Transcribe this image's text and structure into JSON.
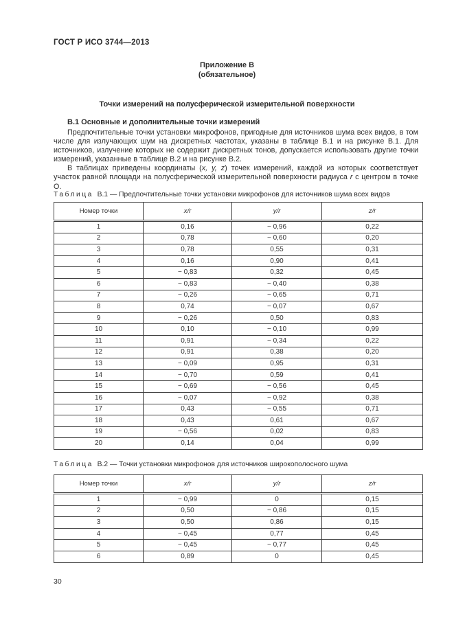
{
  "page": {
    "header": "ГОСТ Р ИСО 3744—2013",
    "page_number": "30"
  },
  "appendix": {
    "title_line1": "Приложение В",
    "title_line2": "(обязательное)",
    "heading": "Точки измерений на полусферической измерительной поверхности"
  },
  "section": {
    "title": "В.1 Основные и дополнительные точки измерений",
    "paragraph1": "Предпочтительные точки установки микрофонов, пригодные для источников шума всех видов, в том числе для излучающих шум на дискретных частотах, указаны в таблице В.1 и на рисунке В.1. Для источников, излучение которых не содержит дискретных тонов, допускается использовать другие точки измерений, указанные в таблице В.2 и на рисунке В.2.",
    "paragraph2_parts": {
      "a": "В таблицах приведены координаты (",
      "b": "x, y, z",
      "c": ") точек измерений, каждой из которых соответствует участок равной площади на полусферической измерительной поверхности радиуса ",
      "d": "r",
      "e": " с центром в точке О."
    }
  },
  "table_b1": {
    "caption_label": "Таблица",
    "caption_number": "В.1",
    "caption_text": "— Предпочтительные точки установки микрофонов для источников шума всех видов",
    "columns": [
      "Номер точки",
      "x/r",
      "y/r",
      "z/r"
    ],
    "rows": [
      [
        "1",
        "0,16",
        "− 0,96",
        "0,22"
      ],
      [
        "2",
        "0,78",
        "− 0,60",
        "0,20"
      ],
      [
        "3",
        "0,78",
        "0,55",
        "0,31"
      ],
      [
        "4",
        "0,16",
        "0,90",
        "0,41"
      ],
      [
        "5",
        "− 0,83",
        "0,32",
        "0,45"
      ],
      [
        "6",
        "− 0,83",
        "− 0,40",
        "0,38"
      ],
      [
        "7",
        "− 0,26",
        "− 0,65",
        "0,71"
      ],
      [
        "8",
        "0,74",
        "− 0,07",
        "0,67"
      ],
      [
        "9",
        "− 0,26",
        "0,50",
        "0,83"
      ],
      [
        "10",
        "0,10",
        "− 0,10",
        "0,99"
      ],
      [
        "11",
        "0,91",
        "− 0,34",
        "0,22"
      ],
      [
        "12",
        "0,91",
        "0,38",
        "0,20"
      ],
      [
        "13",
        "− 0,09",
        "0,95",
        "0,31"
      ],
      [
        "14",
        "− 0,70",
        "0,59",
        "0,41"
      ],
      [
        "15",
        "− 0,69",
        "− 0,56",
        "0,45"
      ],
      [
        "16",
        "− 0,07",
        "− 0,92",
        "0,38"
      ],
      [
        "17",
        "0,43",
        "− 0,55",
        "0,71"
      ],
      [
        "18",
        "0,43",
        "0,61",
        "0,67"
      ],
      [
        "19",
        "− 0,56",
        "0,02",
        "0,83"
      ],
      [
        "20",
        "0,14",
        "0,04",
        "0,99"
      ]
    ]
  },
  "table_b2": {
    "caption_label": "Таблица",
    "caption_number": "В.2",
    "caption_text": "— Точки установки микрофонов для источников широкополосного шума",
    "columns": [
      "Номер точки",
      "x/r",
      "y/r",
      "z/r"
    ],
    "rows": [
      [
        "1",
        "− 0,99",
        "0",
        "0,15"
      ],
      [
        "2",
        "0,50",
        "− 0,86",
        "0,15"
      ],
      [
        "3",
        "0,50",
        "0,86",
        "0,15"
      ],
      [
        "4",
        "− 0,45",
        "0,77",
        "0,45"
      ],
      [
        "5",
        "− 0,45",
        "− 0,77",
        "0,45"
      ],
      [
        "6",
        "0,89",
        "0",
        "0,45"
      ]
    ]
  }
}
